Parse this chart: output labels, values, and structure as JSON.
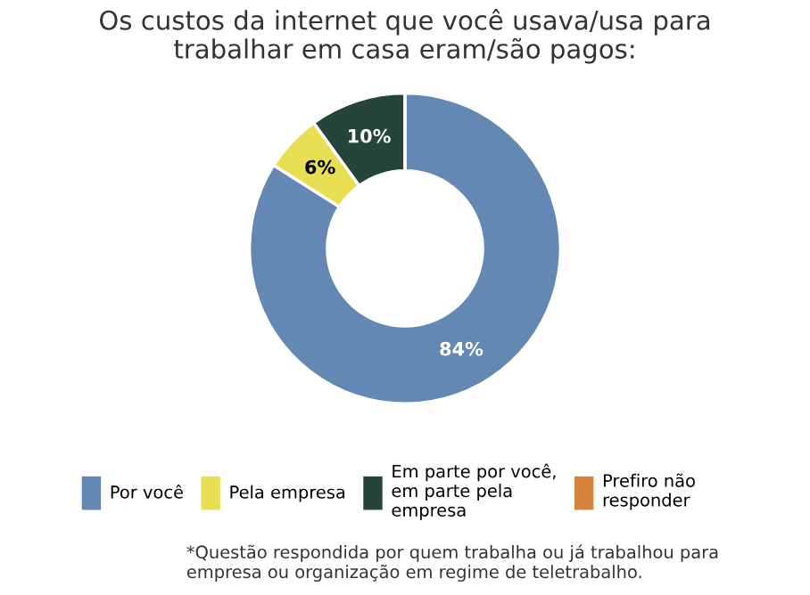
{
  "chart_data": {
    "type": "donut",
    "title": "Os custos da internet que você usava/usa para\ntrabalhar em casa eram/são pagos:",
    "categories": [
      "Por você",
      "Pela empresa",
      "Em parte por você,\nem parte pela\nempresa",
      "Prefiro não\nresponder"
    ],
    "values": [
      84,
      6,
      10,
      0
    ],
    "colors": [
      "#6388b4",
      "#e8de52",
      "#25443a",
      "#d4853b"
    ],
    "value_labels": [
      "84%",
      "6%",
      "10%",
      null
    ],
    "legend": "bottom",
    "annotations": [
      "*Questão respondida por quem trabalha ou já trabalhou para\nempresa ou organização em regime de teletrabalho."
    ]
  }
}
